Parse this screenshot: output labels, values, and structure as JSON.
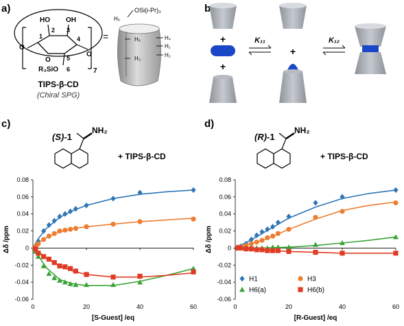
{
  "panels": {
    "a": {
      "label": "a)",
      "compound_name": "TIPS-β-CD",
      "compound_subtitle": "(Chiral SPG)",
      "equals": "=",
      "ring_atoms": {
        "c1": "1",
        "c2": "2",
        "c3": "3",
        "c4": "4",
        "c5": "5",
        "c6": "6",
        "ho": "HO",
        "oh": "OH",
        "o": "O",
        "r3sio": "R₃SiO",
        "sub": "7"
      },
      "cylinder_labels": {
        "h6": "H₆",
        "osi": "OSi(i-Pr)₃",
        "h5": "H₅",
        "h4": "H₄",
        "h1": "H₁",
        "h2": "H₂",
        "h3": "H₃"
      }
    },
    "b": {
      "label": "b)",
      "plus1": "+",
      "plus2": "+",
      "plus3": "+",
      "k11": "K₁₁",
      "k12": "K₁₂"
    },
    "c": {
      "label": "c)",
      "guest_prefix": "(S)",
      "guest_suffix": "-1",
      "nh2": "NH₂",
      "reagent": "+  TIPS-β-CD"
    },
    "d": {
      "label": "d)",
      "guest_prefix": "(R)",
      "guest_suffix": "-1",
      "nh2": "NH₂",
      "reagent": "+  TIPS-β-CD"
    }
  },
  "colors": {
    "H1": "#2e75b6",
    "H3": "#ed7d31",
    "H6a": "#3aa335",
    "H6b": "#e03b24"
  },
  "chart_data": [
    {
      "type": "scatter",
      "xlabel": "[S-Guest] /eq",
      "ylabel": "Δδ /ppm",
      "xlim": [
        0,
        60
      ],
      "ylim": [
        -0.06,
        0.08
      ],
      "xticks": [
        "0",
        "20",
        "40",
        "60"
      ],
      "yticks": [
        "0.08",
        "0.06",
        "0.04",
        "0.02",
        "0",
        "-0.02",
        "-0.04",
        "-0.06"
      ],
      "series": [
        {
          "name": "H1",
          "key": "H1",
          "marker": "diamond",
          "x": [
            1,
            2,
            4,
            6,
            8,
            10,
            12,
            14,
            16,
            20,
            30,
            40,
            60
          ],
          "y": [
            0.002,
            0.008,
            0.02,
            0.027,
            0.032,
            0.037,
            0.04,
            0.043,
            0.046,
            0.05,
            0.058,
            0.065,
            0.068
          ],
          "fit": [
            [
              0,
              0
            ],
            [
              2,
              0.011
            ],
            [
              5,
              0.023
            ],
            [
              10,
              0.036
            ],
            [
              15,
              0.044
            ],
            [
              20,
              0.05
            ],
            [
              30,
              0.058
            ],
            [
              40,
              0.063
            ],
            [
              50,
              0.066
            ],
            [
              60,
              0.068
            ]
          ]
        },
        {
          "name": "H3",
          "key": "H3",
          "marker": "circle",
          "x": [
            1,
            2,
            4,
            6,
            8,
            10,
            12,
            14,
            16,
            20,
            30,
            40,
            60
          ],
          "y": [
            0.002,
            0.005,
            0.01,
            0.014,
            0.017,
            0.02,
            0.021,
            0.022,
            0.023,
            0.025,
            0.028,
            0.031,
            0.034
          ],
          "fit": [
            [
              0,
              0
            ],
            [
              2,
              0.006
            ],
            [
              5,
              0.012
            ],
            [
              10,
              0.019
            ],
            [
              15,
              0.023
            ],
            [
              20,
              0.025
            ],
            [
              30,
              0.028
            ],
            [
              40,
              0.031
            ],
            [
              50,
              0.033
            ],
            [
              60,
              0.035
            ]
          ]
        },
        {
          "name": "H6(a)",
          "key": "H6a",
          "marker": "triangle",
          "x": [
            1,
            2,
            4,
            6,
            8,
            10,
            12,
            14,
            16,
            20,
            30,
            40,
            60
          ],
          "y": [
            -0.004,
            -0.01,
            -0.021,
            -0.03,
            -0.035,
            -0.038,
            -0.04,
            -0.042,
            -0.043,
            -0.043,
            -0.043,
            -0.04,
            -0.024
          ],
          "fit": [
            [
              0,
              0
            ],
            [
              2,
              -0.009
            ],
            [
              5,
              -0.023
            ],
            [
              10,
              -0.037
            ],
            [
              15,
              -0.042
            ],
            [
              20,
              -0.044
            ],
            [
              30,
              -0.044
            ],
            [
              40,
              -0.039
            ],
            [
              50,
              -0.032
            ],
            [
              60,
              -0.024
            ]
          ]
        },
        {
          "name": "H6(b)",
          "key": "H6b",
          "marker": "square",
          "x": [
            1,
            2,
            4,
            6,
            8,
            10,
            12,
            14,
            16,
            20,
            30,
            40,
            60
          ],
          "y": [
            -0.001,
            -0.006,
            -0.01,
            -0.013,
            -0.017,
            -0.021,
            -0.022,
            -0.024,
            -0.027,
            -0.031,
            -0.034,
            -0.033,
            -0.028
          ],
          "fit": [
            [
              0,
              0
            ],
            [
              2,
              -0.004
            ],
            [
              5,
              -0.012
            ],
            [
              10,
              -0.021
            ],
            [
              15,
              -0.027
            ],
            [
              20,
              -0.031
            ],
            [
              30,
              -0.034
            ],
            [
              40,
              -0.034
            ],
            [
              50,
              -0.032
            ],
            [
              60,
              -0.029
            ]
          ]
        }
      ]
    },
    {
      "type": "scatter",
      "xlabel": "[R-Guest] /eq",
      "ylabel": "Δδ /ppm",
      "xlim": [
        0,
        60
      ],
      "ylim": [
        -0.06,
        0.08
      ],
      "xticks": [
        "0",
        "20",
        "40",
        "60"
      ],
      "yticks": [
        "0.08",
        "0.06",
        "0.04",
        "0.02",
        "0",
        "-0.02",
        "-0.04",
        "-0.06"
      ],
      "legend": {
        "placement": "bottom-left",
        "entries": [
          "H1",
          "H3",
          "H6(a)",
          "H6(b)"
        ]
      },
      "series": [
        {
          "name": "H1",
          "key": "H1",
          "marker": "diamond",
          "x": [
            1,
            2,
            4,
            6,
            8,
            10,
            12,
            14,
            16,
            20,
            30,
            40,
            60
          ],
          "y": [
            0.001,
            0.002,
            0.005,
            0.01,
            0.015,
            0.019,
            0.022,
            0.025,
            0.03,
            0.037,
            0.053,
            0.06,
            0.068
          ],
          "fit": [
            [
              0,
              0
            ],
            [
              5,
              0.008
            ],
            [
              10,
              0.017
            ],
            [
              15,
              0.026
            ],
            [
              20,
              0.035
            ],
            [
              30,
              0.048
            ],
            [
              40,
              0.058
            ],
            [
              50,
              0.064
            ],
            [
              60,
              0.068
            ]
          ]
        },
        {
          "name": "H3",
          "key": "H3",
          "marker": "circle",
          "x": [
            1,
            2,
            4,
            6,
            8,
            10,
            12,
            14,
            16,
            20,
            30,
            40,
            60
          ],
          "y": [
            0.001,
            0.001,
            0.003,
            0.005,
            0.007,
            0.009,
            0.012,
            0.014,
            0.017,
            0.022,
            0.036,
            0.043,
            0.053
          ],
          "fit": [
            [
              0,
              0
            ],
            [
              5,
              0.004
            ],
            [
              10,
              0.009
            ],
            [
              15,
              0.015
            ],
            [
              20,
              0.022
            ],
            [
              30,
              0.034
            ],
            [
              40,
              0.044
            ],
            [
              50,
              0.05
            ],
            [
              60,
              0.054
            ]
          ]
        },
        {
          "name": "H6(a)",
          "key": "H6a",
          "marker": "triangle",
          "x": [
            1,
            2,
            4,
            6,
            8,
            10,
            12,
            14,
            16,
            20,
            30,
            40,
            60
          ],
          "y": [
            0.0,
            0.0,
            0.0,
            0.0,
            0.0,
            0.0,
            0.0,
            0.001,
            0.001,
            0.001,
            0.004,
            0.006,
            0.013
          ],
          "fit": [
            [
              0,
              0
            ],
            [
              10,
              0.0
            ],
            [
              20,
              0.001
            ],
            [
              30,
              0.003
            ],
            [
              40,
              0.006
            ],
            [
              50,
              0.009
            ],
            [
              60,
              0.013
            ]
          ]
        },
        {
          "name": "H6(b)",
          "key": "H6b",
          "marker": "square",
          "x": [
            1,
            2,
            4,
            6,
            8,
            10,
            12,
            14,
            16,
            20,
            30,
            40,
            60
          ],
          "y": [
            0.0,
            0.0,
            -0.001,
            -0.001,
            -0.002,
            -0.002,
            -0.003,
            -0.003,
            -0.003,
            -0.004,
            -0.005,
            -0.006,
            -0.006
          ],
          "fit": [
            [
              0,
              0
            ],
            [
              10,
              -0.002
            ],
            [
              20,
              -0.004
            ],
            [
              30,
              -0.005
            ],
            [
              40,
              -0.006
            ],
            [
              50,
              -0.006
            ],
            [
              60,
              -0.006
            ]
          ]
        }
      ]
    }
  ]
}
